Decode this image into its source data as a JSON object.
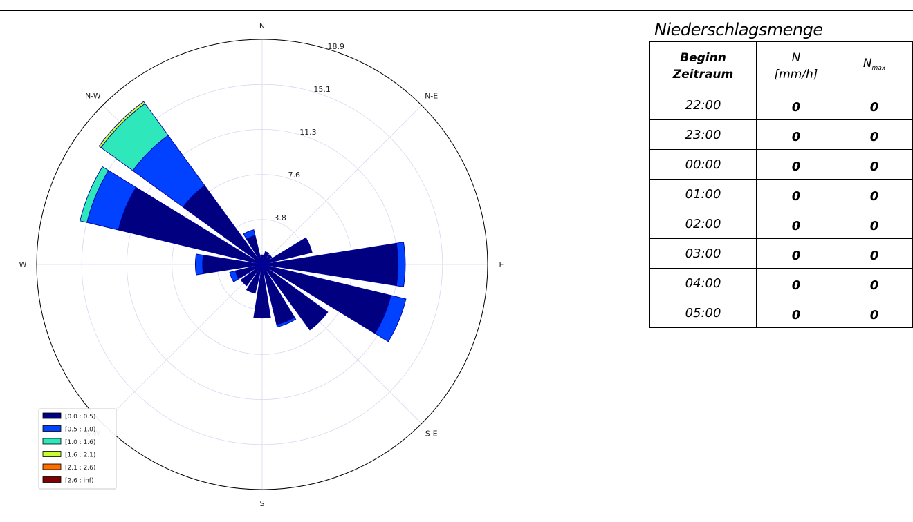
{
  "chart_data": {
    "type": "windrose",
    "rings": [
      "3.8",
      "7.6",
      "11.3",
      "15.1",
      "18.9"
    ],
    "ring_values": [
      3.78,
      7.56,
      11.34,
      15.12,
      18.9
    ],
    "rmax": 18.9,
    "directions": [
      {
        "label": "E",
        "angle": 0
      },
      {
        "label": "N-E",
        "angle": 45
      },
      {
        "label": "N",
        "angle": 90
      },
      {
        "label": "N-W",
        "angle": 135
      },
      {
        "label": "W",
        "angle": 180
      },
      {
        "label": "S-W",
        "angle": 225
      },
      {
        "label": "S",
        "angle": 270
      },
      {
        "label": "S-E",
        "angle": 315
      }
    ],
    "legend": [
      {
        "label": "[0.0 : 0.5)",
        "color": "#000080"
      },
      {
        "label": "[0.5 : 1.0)",
        "color": "#0042ff"
      },
      {
        "label": "[1.0 : 1.6)",
        "color": "#2ee8bb"
      },
      {
        "label": "[1.6 : 2.1)",
        "color": "#c6ff2f"
      },
      {
        "label": "[2.1 : 2.6)",
        "color": "#ff6c00"
      },
      {
        "label": "[2.6 : inf)",
        "color": "#800000"
      }
    ],
    "sectors": [
      {
        "angle": 0,
        "bins": [
          11.4,
          0.6
        ]
      },
      {
        "angle": 22.5,
        "bins": [
          4.3
        ]
      },
      {
        "angle": 45,
        "bins": [
          1.0
        ]
      },
      {
        "angle": 67.5,
        "bins": [
          1.1
        ]
      },
      {
        "angle": 90,
        "bins": [
          0.8
        ]
      },
      {
        "angle": 112.5,
        "bins": [
          2.5,
          0.5
        ]
      },
      {
        "angle": 135,
        "bins": [
          8.2,
          5.2,
          3.3,
          0.2
        ]
      },
      {
        "angle": 157.5,
        "bins": [
          12.4,
          2.7,
          0.6
        ]
      },
      {
        "angle": 180,
        "bins": [
          5.0,
          0.6
        ]
      },
      {
        "angle": 202.5,
        "bins": [
          2.3,
          0.5
        ]
      },
      {
        "angle": 225,
        "bins": [
          2.2
        ]
      },
      {
        "angle": 247.5,
        "bins": [
          2.5
        ]
      },
      {
        "angle": 270,
        "bins": [
          4.5
        ]
      },
      {
        "angle": 292.5,
        "bins": [
          5.2,
          0.2
        ]
      },
      {
        "angle": 315,
        "bins": [
          6.8
        ]
      },
      {
        "angle": 337.5,
        "bins": [
          11.1,
          1.3
        ]
      }
    ]
  },
  "precip": {
    "title": "Niederschlagsmenge",
    "headers": {
      "col1_line1": "Beginn",
      "col1_line2": "Zeitraum",
      "col2_line1": "N",
      "col2_line2": "[mm/h]",
      "col3_main": "N",
      "col3_sub": "max"
    },
    "rows": [
      {
        "time": "22:00",
        "n": "0",
        "nmax": "0"
      },
      {
        "time": "23:00",
        "n": "0",
        "nmax": "0"
      },
      {
        "time": "00:00",
        "n": "0",
        "nmax": "0"
      },
      {
        "time": "01:00",
        "n": "0",
        "nmax": "0"
      },
      {
        "time": "02:00",
        "n": "0",
        "nmax": "0"
      },
      {
        "time": "03:00",
        "n": "0",
        "nmax": "0"
      },
      {
        "time": "04:00",
        "n": "0",
        "nmax": "0"
      },
      {
        "time": "05:00",
        "n": "0",
        "nmax": "0"
      }
    ]
  }
}
